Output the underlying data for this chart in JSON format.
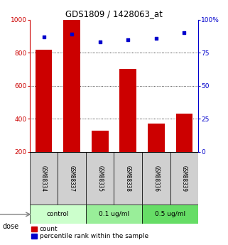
{
  "title": "GDS1809 / 1428063_at",
  "samples": [
    "GSM88334",
    "GSM88337",
    "GSM88335",
    "GSM88338",
    "GSM88336",
    "GSM88339"
  ],
  "bar_values": [
    820,
    1000,
    330,
    700,
    370,
    430
  ],
  "dot_values": [
    87,
    89,
    83,
    85,
    86,
    90
  ],
  "bar_color": "#cc0000",
  "dot_color": "#0000cc",
  "bar_bottom": 200,
  "ylim_left": [
    200,
    1000
  ],
  "ylim_right": [
    0,
    100
  ],
  "yticks_left": [
    200,
    400,
    600,
    800,
    1000
  ],
  "yticks_right": [
    0,
    25,
    50,
    75,
    100
  ],
  "ytick_labels_right": [
    "0",
    "25",
    "50",
    "75",
    "100%"
  ],
  "grid_lines": [
    400,
    600,
    800
  ],
  "groups": [
    {
      "label": "control",
      "span": [
        0,
        2
      ],
      "color": "#ccffcc"
    },
    {
      "label": "0.1 ug/ml",
      "span": [
        2,
        4
      ],
      "color": "#99ee99"
    },
    {
      "label": "0.5 ug/ml",
      "span": [
        4,
        6
      ],
      "color": "#66dd66"
    }
  ],
  "dose_label": "dose",
  "legend_count": "count",
  "legend_pct": "percentile rank within the sample",
  "left_axis_color": "#cc0000",
  "right_axis_color": "#0000cc",
  "bar_width": 0.6,
  "sample_box_color": "#d0d0d0"
}
